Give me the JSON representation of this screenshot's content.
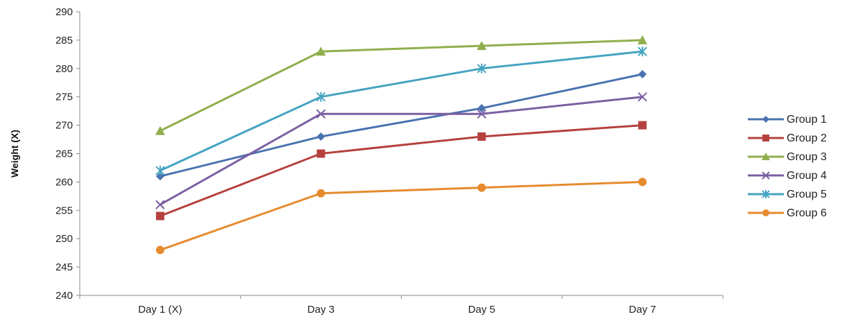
{
  "chart_data": {
    "type": "line",
    "title": "",
    "xlabel": "",
    "ylabel": "Weight (X)",
    "ylim": [
      240,
      290
    ],
    "ytick_step": 5,
    "grid": false,
    "legend_position": "right",
    "categories": [
      "Day 1 (X)",
      "Day 3",
      "Day 5",
      "Day 7"
    ],
    "series": [
      {
        "name": "Group 1",
        "color": "#4A72B0",
        "marker": "diamond",
        "values": [
          261,
          268,
          273,
          279
        ]
      },
      {
        "name": "Group 2",
        "color": "#B5413E",
        "marker": "square",
        "values": [
          254,
          265,
          268,
          270
        ]
      },
      {
        "name": "Group 3",
        "color": "#8FAE4C",
        "marker": "triangle",
        "values": [
          269,
          283,
          284,
          285
        ]
      },
      {
        "name": "Group 4",
        "color": "#7B5FA2",
        "marker": "x",
        "values": [
          256,
          272,
          272,
          275
        ]
      },
      {
        "name": "Group 5",
        "color": "#45A3C1",
        "marker": "star",
        "values": [
          262,
          275,
          280,
          283
        ]
      },
      {
        "name": "Group 6",
        "color": "#E68A2E",
        "marker": "circle",
        "values": [
          248,
          258,
          259,
          260
        ]
      }
    ]
  }
}
